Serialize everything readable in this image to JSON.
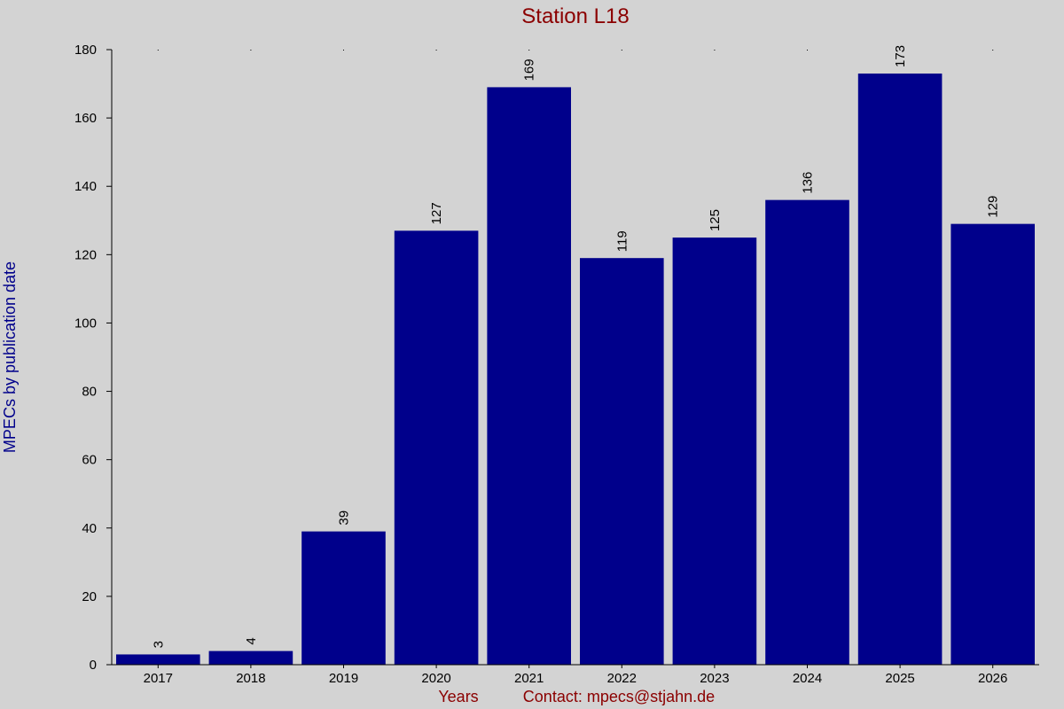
{
  "chart_data": {
    "type": "bar",
    "title": "Station L18",
    "xlabel": "Years",
    "ylabel": "MPECs by publication date",
    "contact": "Contact: mpecs@stjahn.de",
    "categories": [
      "2017",
      "2018",
      "2019",
      "2020",
      "2021",
      "2022",
      "2023",
      "2024",
      "2025",
      "2026"
    ],
    "values": [
      3,
      4,
      39,
      127,
      169,
      119,
      125,
      136,
      173,
      129
    ],
    "ylim": [
      0,
      180
    ],
    "yticks": [
      0,
      20,
      40,
      60,
      80,
      100,
      120,
      140,
      160,
      180
    ],
    "grid": false,
    "colors": {
      "bar": "#00008b",
      "title": "#8b0000",
      "ylabel": "#00008b",
      "xlabel": "#8b0000",
      "axis": "#000000",
      "background": "#d3d3d3"
    }
  }
}
